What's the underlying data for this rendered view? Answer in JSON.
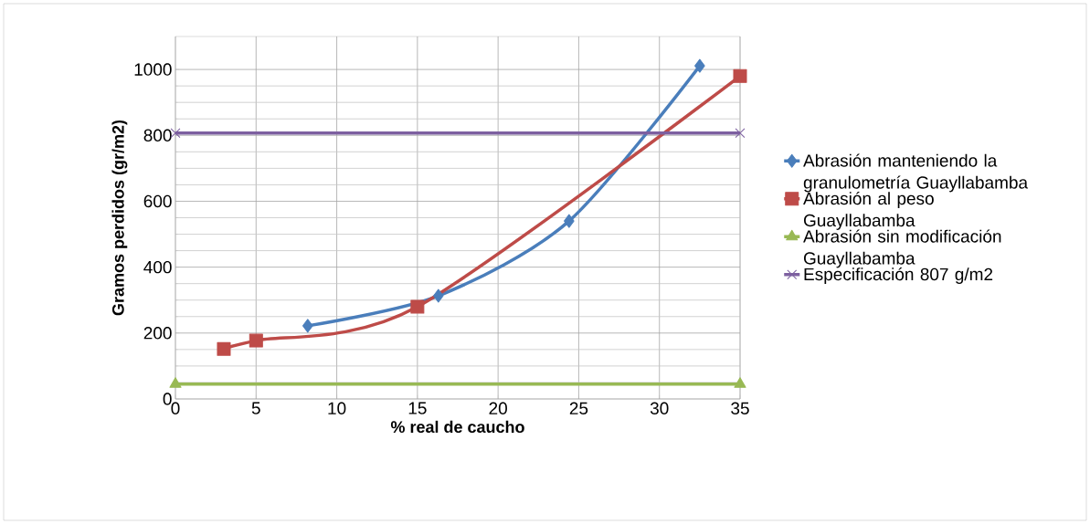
{
  "chart_data": {
    "type": "line",
    "xlabel": "%  real de caucho",
    "ylabel": "Gramos perdidos (gr/m2)",
    "xlim": [
      0,
      35
    ],
    "xticks": [
      0,
      5,
      10,
      15,
      20,
      25,
      30,
      35
    ],
    "ylim": [
      0,
      1100
    ],
    "yticks": [
      0,
      200,
      400,
      600,
      800,
      1000
    ],
    "grid": true,
    "legend": "right",
    "line_style": "solid",
    "series": [
      {
        "name": "Abrasión manteniendo la granulometría Guayllabamba",
        "color": "#4a7ebb",
        "marker": "diamond",
        "x": [
          8.2,
          16.3,
          24.4,
          32.5
        ],
        "values": [
          222,
          313,
          540,
          1011
        ]
      },
      {
        "name": "Abrasión al peso Guayllabamba",
        "color": "#be4b48",
        "marker": "square",
        "x": [
          3,
          5,
          15,
          35
        ],
        "values": [
          152,
          177,
          280,
          980
        ]
      },
      {
        "name": "Abrasión sin modificación Guayllabamba",
        "color": "#98b954",
        "marker": "triangle",
        "x": [
          0,
          35
        ],
        "values": [
          45,
          45
        ]
      },
      {
        "name": "Especificación 807 g/m2",
        "color": "#7d60a0",
        "marker": "cross",
        "x": [
          0,
          35
        ],
        "values": [
          807,
          807
        ]
      }
    ]
  }
}
